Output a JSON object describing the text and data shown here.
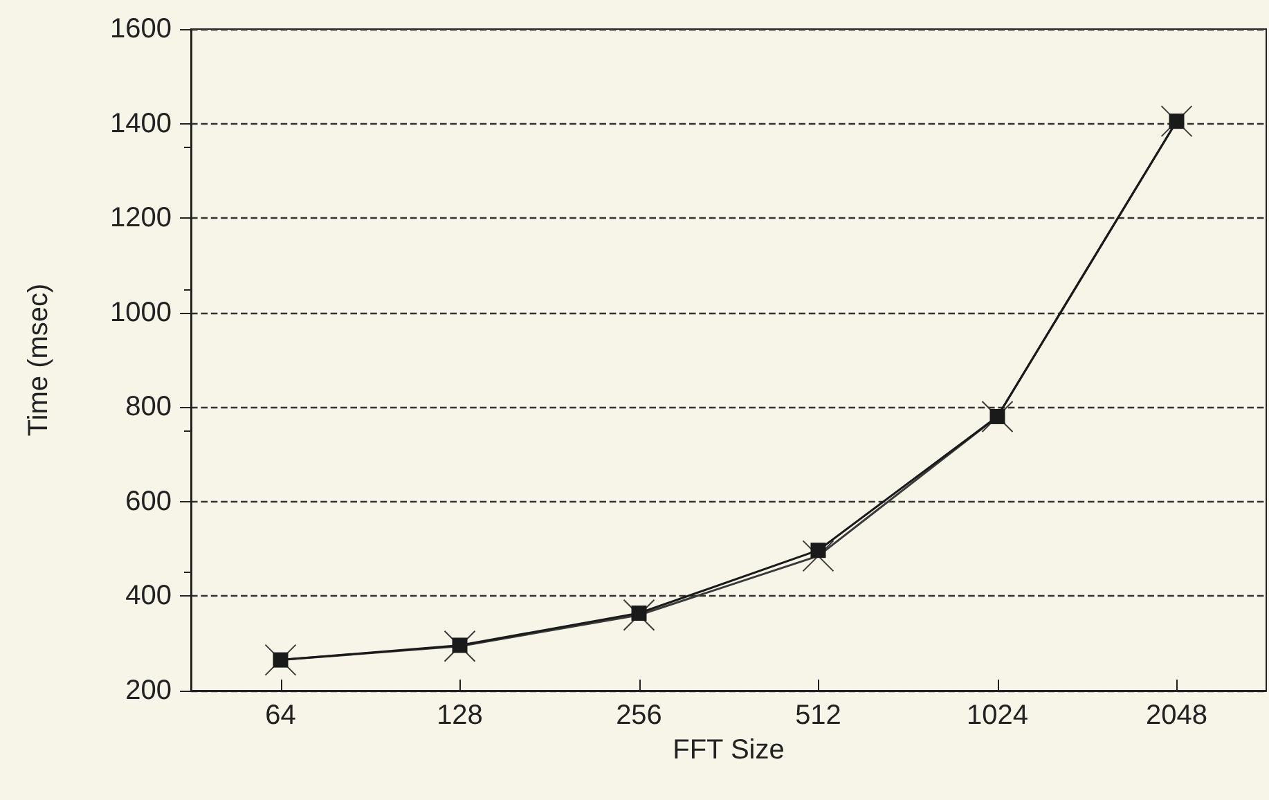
{
  "chart_data": {
    "type": "line",
    "xlabel": "FFT Size",
    "ylabel": "Time (msec)",
    "categories": [
      "64",
      "128",
      "256",
      "512",
      "1024",
      "2048"
    ],
    "series": [
      {
        "color": "#1a1a1a",
        "marker": "square",
        "values": [
          265,
          296,
          364,
          497,
          780,
          1405
        ]
      },
      {
        "color": "#3a3a3a",
        "marker": "cross",
        "values": [
          265,
          294,
          360,
          485,
          780,
          1405
        ]
      }
    ],
    "ylim": [
      200,
      1600
    ],
    "yticks": [
      200,
      400,
      600,
      800,
      1000,
      1200,
      1400,
      1600
    ],
    "grid": "y"
  }
}
